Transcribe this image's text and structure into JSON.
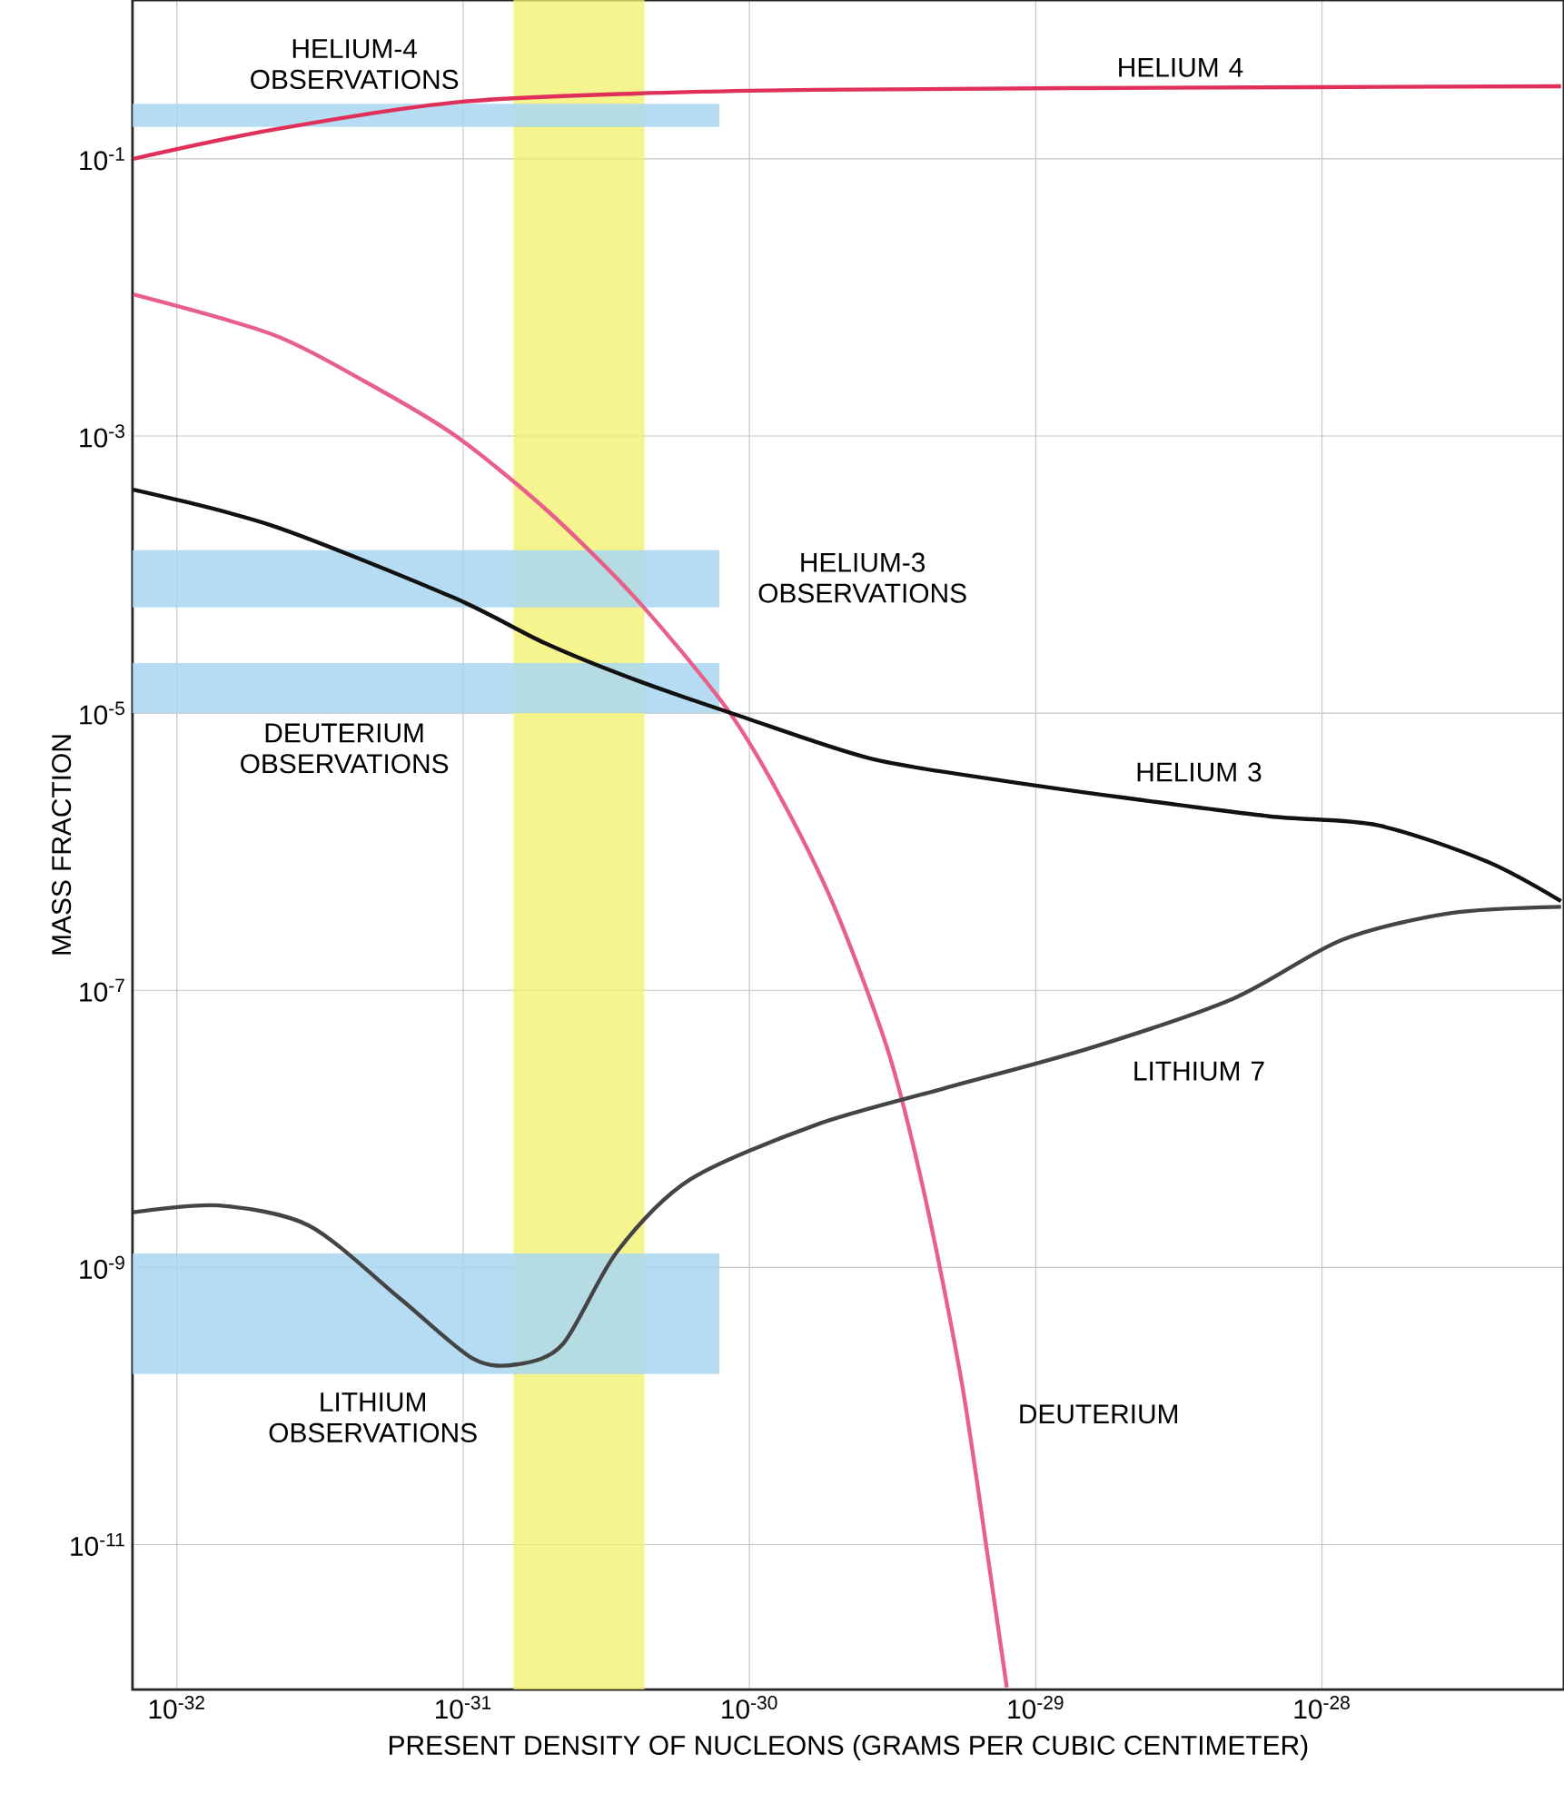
{
  "chart_data": {
    "type": "line",
    "xlabel": "PRESENT DENSITY OF NUCLEONS (GRAMS PER CUBIC CENTIMETER)",
    "ylabel": "MASS FRACTION",
    "log": "xy",
    "grid": true,
    "xlim": [
      7e-33,
      7e-28
    ],
    "ylim": [
      9e-13,
      1.4
    ],
    "xticks": [
      {
        "value": 1e-32,
        "label": "10$^{-32}$"
      },
      {
        "value": 1e-31,
        "label": "10$^{-31}$"
      },
      {
        "value": 1e-30,
        "label": "10$^{-30}$"
      },
      {
        "value": 1e-29,
        "label": "10$^{-29}$"
      },
      {
        "value": 1e-28,
        "label": "10$^{-28}$"
      }
    ],
    "yticks": [
      {
        "value": 0.1,
        "label": "10$^{-1}$"
      },
      {
        "value": 0.001,
        "label": "10$^{-3}$"
      },
      {
        "value": 1e-05,
        "label": "10$^{-5}$"
      },
      {
        "value": 1e-07,
        "label": "10$^{-7}$"
      },
      {
        "value": 1e-09,
        "label": "10$^{-9}$"
      },
      {
        "value": 1e-11,
        "label": "10$^{-11}$"
      }
    ],
    "bands": [
      {
        "axis": "x",
        "from": 1.5e-31,
        "to": 4.3e-31,
        "color": "#f2f06a"
      },
      {
        "axis": "y",
        "from": 0.17,
        "to": 0.25,
        "color": "#a9d6f2"
      },
      {
        "axis": "y",
        "from": 5.8e-05,
        "to": 0.00015,
        "color": "#a9d6f2"
      },
      {
        "axis": "y",
        "from": 1e-05,
        "to": 2.3e-05,
        "color": "#a9d6f2"
      },
      {
        "axis": "y",
        "from": 1.7e-10,
        "to": 1.26e-09,
        "color": "#a9d6f2"
      }
    ],
    "series": [
      {
        "color": "#e0305a",
        "x": [
          7.05e-33,
          2.16e-32,
          9.29e-32,
          3.99e-31,
          1.71e-30,
          1.53e-29,
          6.84e-28
        ],
        "values": [
          0.1,
          0.162,
          0.255,
          0.296,
          0.315,
          0.324,
          0.334
        ]
      },
      {
        "color": "#e8608a",
        "x": [
          7.05e-33,
          2.16e-32,
          4.49e-32,
          9.29e-32,
          1.93e-31,
          3.99e-31,
          8.28e-31,
          1.28e-30,
          1.98e-30,
          3.07e-30,
          4.11e-30,
          5.51e-30,
          6.84e-30,
          7.93e-30
        ],
        "values": [
          0.0105,
          0.0054,
          0.0025,
          0.00102,
          0.0003,
          6.8e-05,
          1.1e-05,
          2.5e-06,
          4e-07,
          3.5e-08,
          3.2e-09,
          1.5e-10,
          7.6e-12,
          9.3e-13
        ]
      },
      {
        "color": "#111111",
        "x": [
          7.05e-33,
          2.16e-32,
          9.29e-32,
          1.93e-31,
          3.99e-31,
          9.3e-31,
          2.65e-30,
          7.36e-30,
          2.04e-29,
          6.55e-29,
          1.57e-28,
          3.77e-28,
          6.84e-28
        ],
        "values": [
          0.00041,
          0.000225,
          6.8e-05,
          3.2e-05,
          1.74e-05,
          9.5e-06,
          4.7e-06,
          3.3e-06,
          2.45e-06,
          1.8e-06,
          1.55e-06,
          8.5e-07,
          4.4e-07
        ]
      },
      {
        "color": "#444444",
        "x": [
          7.05e-33,
          1.4e-32,
          2.9e-32,
          6e-32,
          1.08e-31,
          1.55e-31,
          2.23e-31,
          3.45e-31,
          6.2e-31,
          1.71e-30,
          4.75e-30,
          1.53e-29,
          4.9e-29,
          1.17e-28,
          2.8e-28,
          6.84e-28
        ],
        "values": [
          2.5e-09,
          2.8e-09,
          2e-09,
          6e-10,
          2.2e-10,
          2e-10,
          2.8e-10,
          1.3e-09,
          4.3e-09,
          1.07e-08,
          1.95e-08,
          3.8e-08,
          8.7e-08,
          2.3e-07,
          3.6e-07,
          4e-07
        ]
      }
    ],
    "annotations": [
      "HELIUM 4",
      "HELIUM-4 OBSERVATIONS",
      "HELIUM-3 OBSERVATIONS",
      "DEUTERIUM OBSERVATIONS",
      "HELIUM 3",
      "LITHIUM 7",
      "LITHIUM OBSERVATIONS",
      "DEUTERIUM"
    ]
  }
}
